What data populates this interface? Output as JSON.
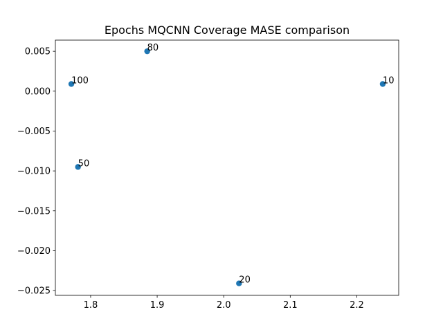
{
  "chart_data": {
    "type": "scatter",
    "title": "Epochs MQCNN Coverage MASE comparison",
    "xlabel": "",
    "ylabel": "",
    "xlim": [
      1.747,
      2.263
    ],
    "ylim": [
      -0.0256,
      0.0064
    ],
    "grid": false,
    "marker_color": "#1f77b4",
    "x_ticks": [
      {
        "value": 1.8,
        "label": "1.8"
      },
      {
        "value": 1.9,
        "label": "1.9"
      },
      {
        "value": 2.0,
        "label": "2.0"
      },
      {
        "value": 2.1,
        "label": "2.1"
      },
      {
        "value": 2.2,
        "label": "2.2"
      }
    ],
    "y_ticks": [
      {
        "value": 0.005,
        "label": "0.005"
      },
      {
        "value": 0.0,
        "label": "0.000"
      },
      {
        "value": -0.005,
        "label": "−0.005"
      },
      {
        "value": -0.01,
        "label": "−0.010"
      },
      {
        "value": -0.015,
        "label": "−0.015"
      },
      {
        "value": -0.02,
        "label": "−0.020"
      },
      {
        "value": -0.025,
        "label": "−0.025"
      }
    ],
    "points": [
      {
        "label": "100",
        "x": 1.771,
        "y": 0.0009
      },
      {
        "label": "80",
        "x": 1.885,
        "y": 0.005
      },
      {
        "label": "50",
        "x": 1.781,
        "y": -0.0095
      },
      {
        "label": "20",
        "x": 2.023,
        "y": -0.0241
      },
      {
        "label": "10",
        "x": 2.239,
        "y": 0.0009
      }
    ]
  }
}
